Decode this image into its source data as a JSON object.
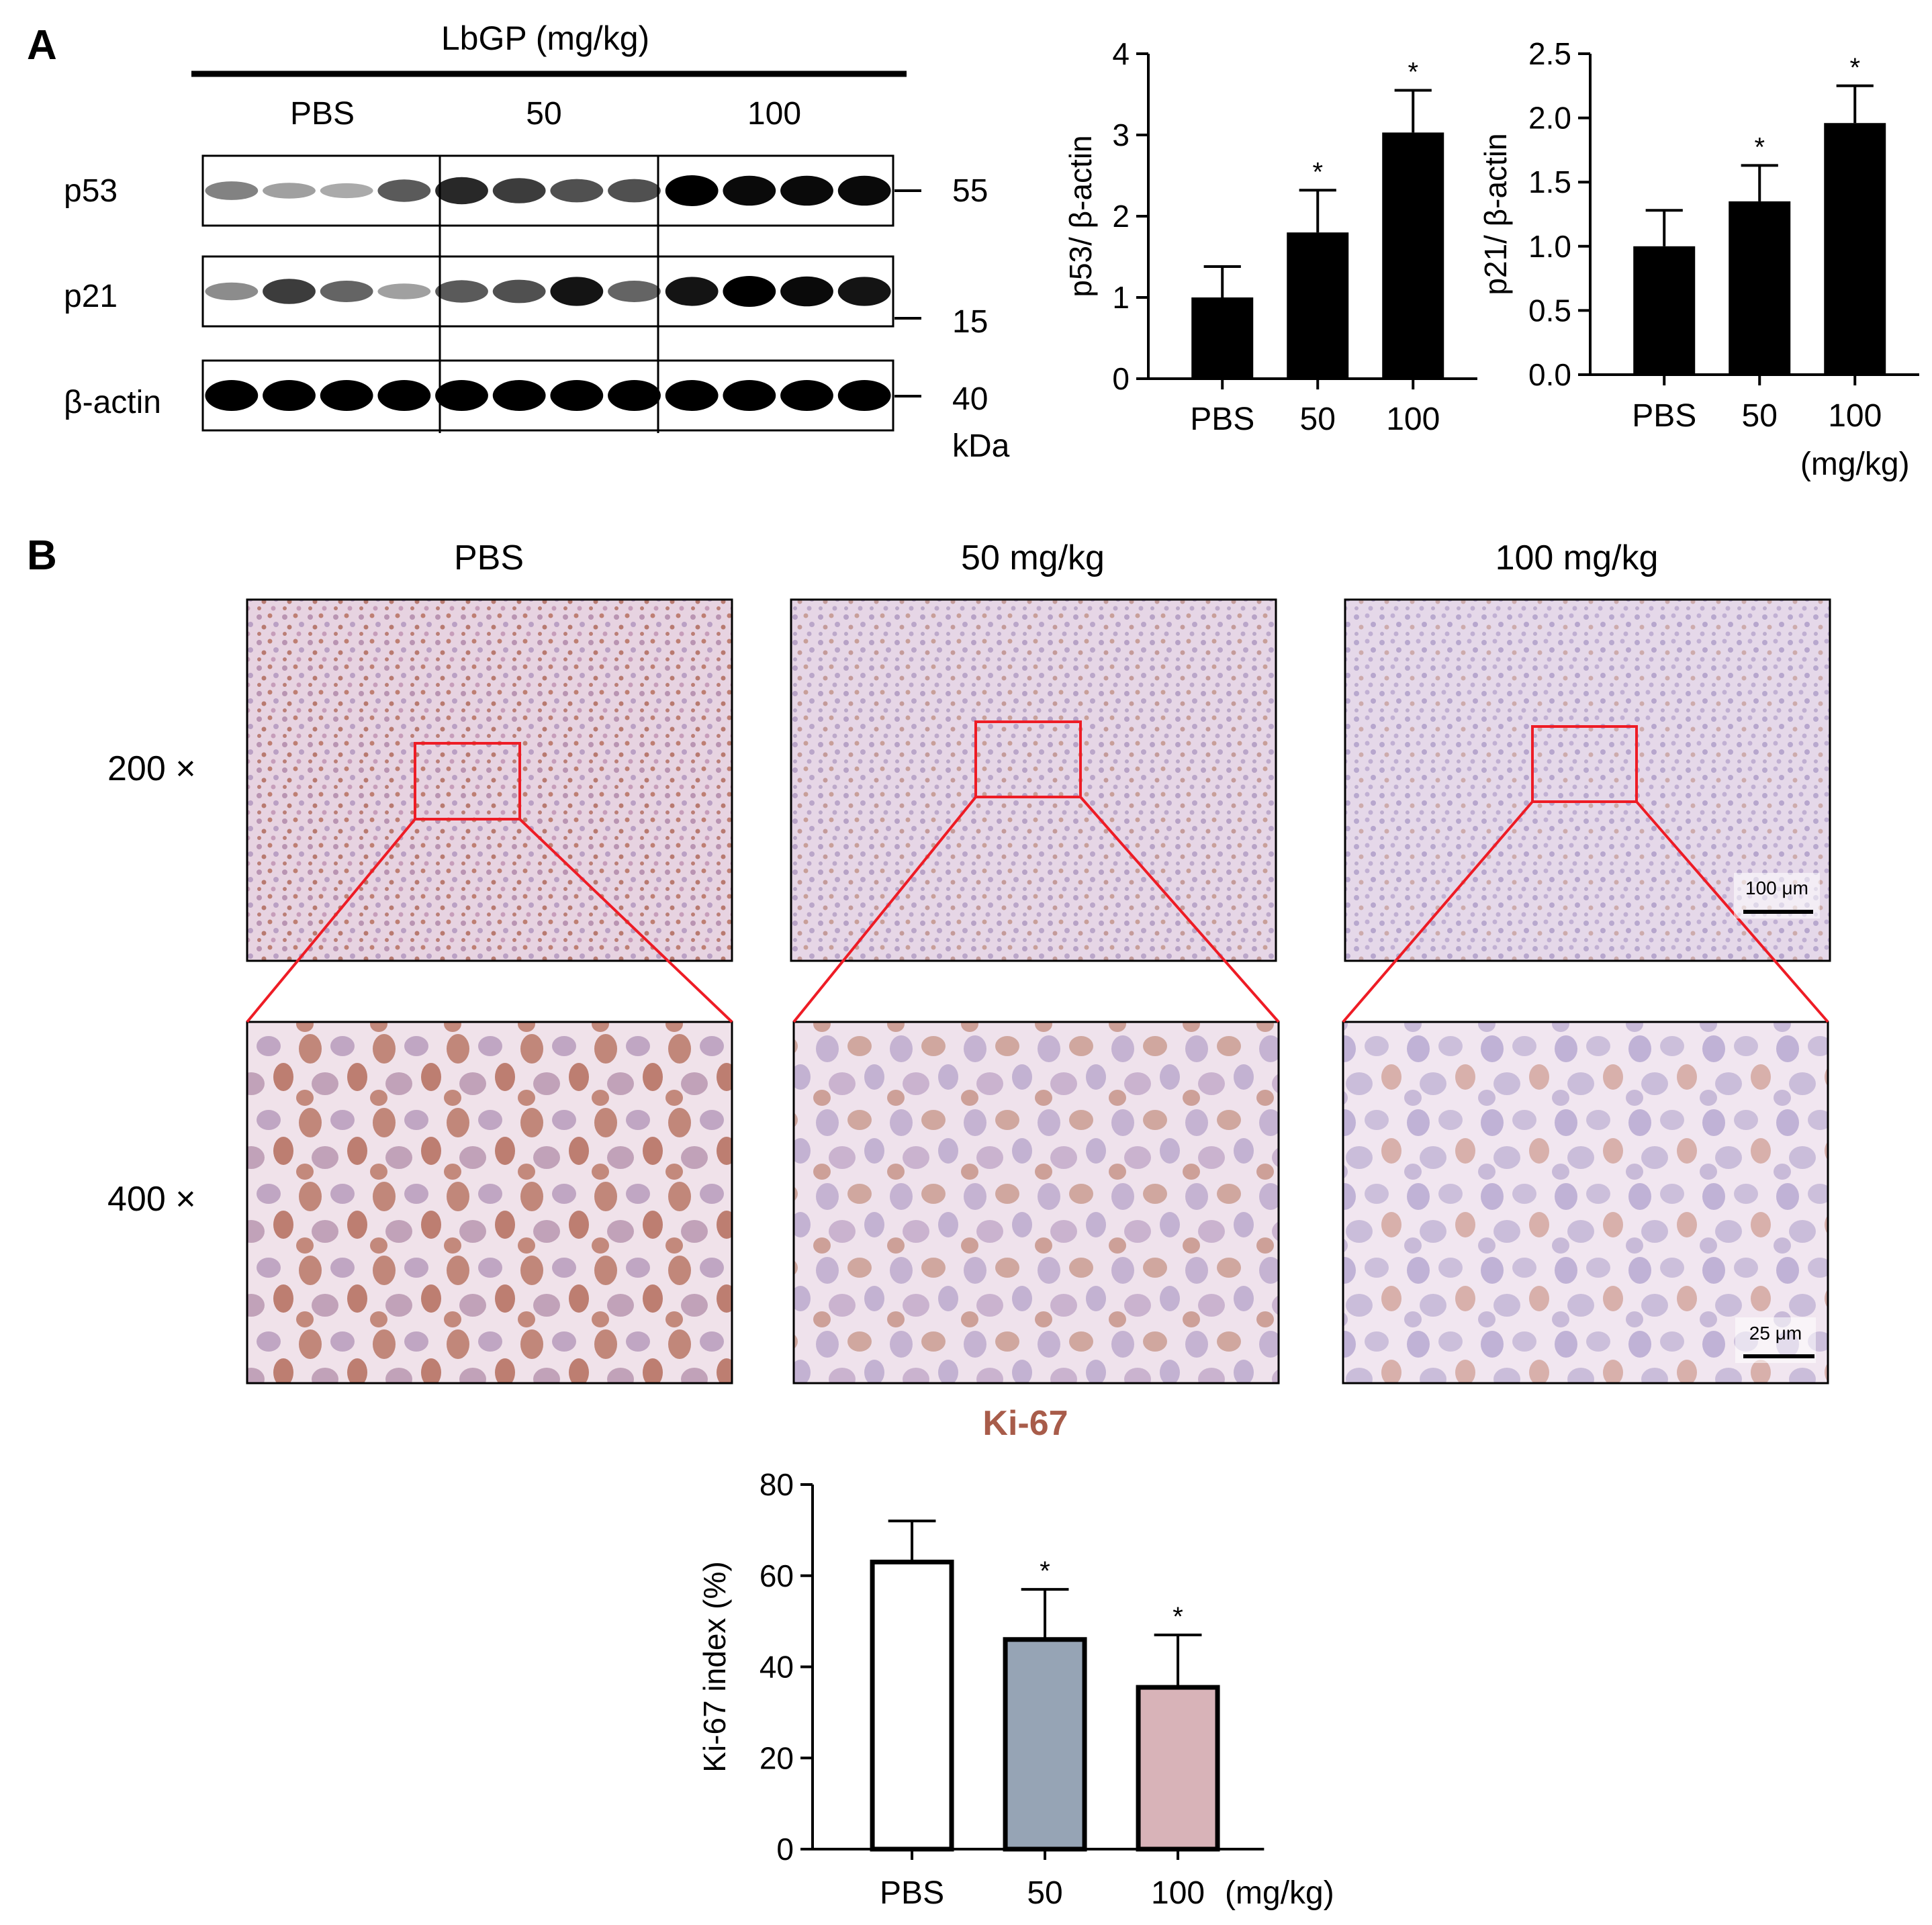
{
  "panel_a": {
    "label": "A",
    "blot": {
      "treatment_label": "LbGP (mg/kg)",
      "groups": [
        "PBS",
        "50",
        "100"
      ],
      "rows": [
        {
          "name": "p53",
          "marker": "55",
          "intensity": [
            0.35,
            0.2,
            0.15,
            0.55,
            0.8,
            0.7,
            0.6,
            0.6,
            1.0,
            0.95,
            0.95,
            0.95
          ]
        },
        {
          "name": "p21",
          "marker": "15",
          "intensity": [
            0.3,
            0.7,
            0.5,
            0.2,
            0.55,
            0.6,
            0.9,
            0.5,
            0.9,
            1.0,
            0.95,
            0.9
          ]
        },
        {
          "name": "β-actin",
          "marker": "40",
          "intensity": [
            1,
            1,
            1,
            1,
            1,
            1,
            1,
            1,
            1,
            1,
            1,
            1
          ]
        }
      ],
      "unit": "kDa"
    }
  },
  "panel_b": {
    "label": "B",
    "columns": [
      "PBS",
      "50 mg/kg",
      "100 mg/kg"
    ],
    "rows": [
      "200 ×",
      "400 ×"
    ],
    "scale_bars": [
      "100 μm",
      "25 μm"
    ],
    "stain": "Ki-67",
    "highlight_color": "#ee1c25",
    "stain_color": "#a85c4a"
  },
  "chart_data": [
    {
      "type": "bar",
      "categories": [
        "PBS",
        "50",
        "100"
      ],
      "values": [
        1.0,
        1.8,
        3.03
      ],
      "errors": [
        0.38,
        0.52,
        0.52
      ],
      "significance": [
        "",
        "*",
        "*"
      ],
      "ylabel": "p53/ β-actin",
      "ylim": [
        0,
        4
      ],
      "yticks": [
        "0",
        "1",
        "2",
        "3",
        "4"
      ],
      "bar_colors": [
        "#000000",
        "#000000",
        "#000000"
      ],
      "unit_label": ""
    },
    {
      "type": "bar",
      "categories": [
        "PBS",
        "50",
        "100"
      ],
      "values": [
        1.0,
        1.35,
        1.96
      ],
      "errors": [
        0.28,
        0.28,
        0.29
      ],
      "significance": [
        "",
        "*",
        "*"
      ],
      "ylabel": "p21/ β-actin",
      "ylim": [
        0,
        2.5
      ],
      "yticks": [
        "0.0",
        "0.5",
        "1.0",
        "1.5",
        "2.0",
        "2.5"
      ],
      "bar_colors": [
        "#000000",
        "#000000",
        "#000000"
      ],
      "unit_label": "(mg/kg)"
    },
    {
      "type": "bar",
      "categories": [
        "PBS",
        "50",
        "100"
      ],
      "values": [
        63,
        46,
        35.5
      ],
      "errors": [
        9,
        11,
        11.5
      ],
      "significance": [
        "",
        "*",
        "*"
      ],
      "ylabel": "Ki-67 index (%)",
      "ylim": [
        0,
        80
      ],
      "yticks": [
        "0",
        "20",
        "40",
        "60",
        "80"
      ],
      "bar_colors": [
        "#ffffff",
        "#96a4b5",
        "#d8b3b8"
      ],
      "unit_label": "(mg/kg)"
    }
  ]
}
